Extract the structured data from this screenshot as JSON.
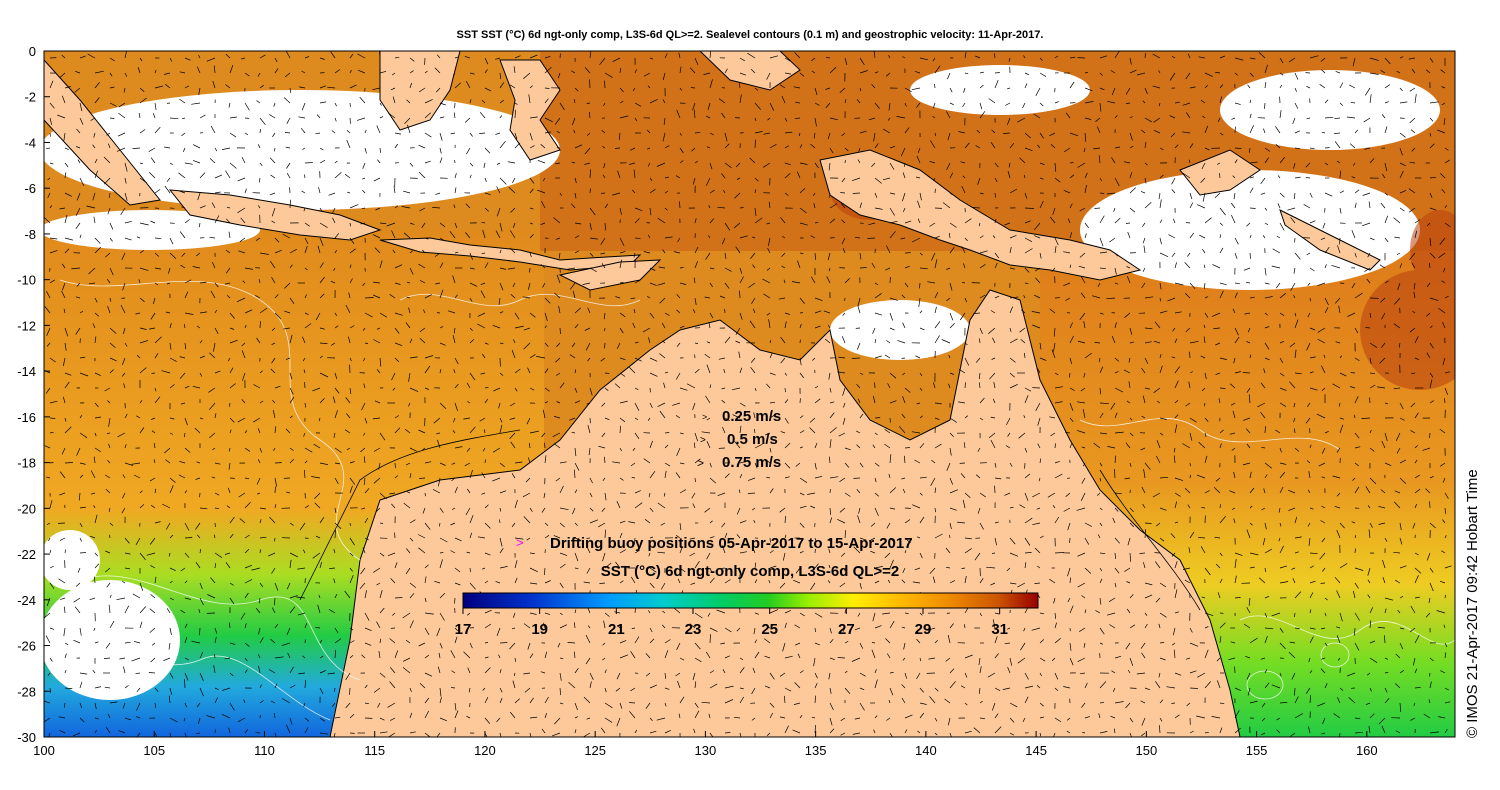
{
  "title": "SST SST (°C) 6d ngt-only comp, L3S-6d QL>=2. Sealevel contours (0.1 m) and geostrophic velocity: 11-Apr-2017.",
  "credit": "© IMOS 21-Apr-2017 09:42 Hobart Time",
  "axes": {
    "x_ticks": [
      "100",
      "105",
      "110",
      "115",
      "120",
      "125",
      "130",
      "135",
      "140",
      "145",
      "150",
      "155",
      "160"
    ],
    "y_ticks": [
      "0",
      "-2",
      "-4",
      "-6",
      "-8",
      "-10",
      "-12",
      "-14",
      "-16",
      "-18",
      "-20",
      "-22",
      "-24",
      "-26",
      "-28",
      "-30"
    ],
    "lon_range": [
      100,
      164
    ],
    "lat_range": [
      -30,
      0
    ]
  },
  "velocity_legend": [
    {
      "glyph": ">",
      "label": "0.25 m/s"
    },
    {
      "glyph": ">",
      "label": "0.5 m/s"
    },
    {
      "glyph": ">",
      "label": "0.75 m/s"
    }
  ],
  "buoy_legend": {
    "glyph": ">",
    "label": "Drifting buoy positions 05-Apr-2017 to 15-Apr-2017",
    "color": "#ff00ff"
  },
  "colorbar": {
    "title": "SST (°C) 6d ngt-only comp, L3S-6d QL>=2",
    "ticks": [
      "17",
      "19",
      "21",
      "23",
      "25",
      "27",
      "29",
      "31"
    ],
    "range": [
      17,
      32
    ],
    "colors": [
      "#00007f",
      "#0033cc",
      "#0099ff",
      "#00cccc",
      "#00cc66",
      "#22cc22",
      "#99ee00",
      "#ffee00",
      "#ffbb00",
      "#ee8800",
      "#cc5500",
      "#990000"
    ]
  },
  "colors": {
    "land": "#fdc99a",
    "no_data": "#ffffff",
    "warm_sea": "#dd8a1e"
  }
}
